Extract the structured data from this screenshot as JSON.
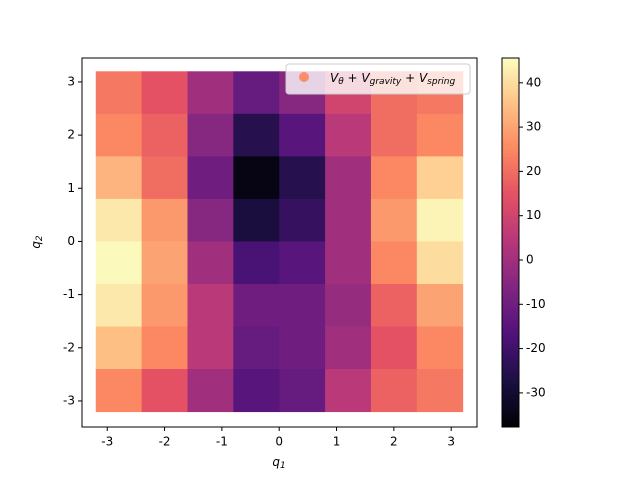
{
  "chart_data": {
    "type": "heatmap",
    "xlabel": [
      "q",
      "1"
    ],
    "ylabel": [
      "q",
      "2"
    ],
    "legend_label": [
      "V",
      "θ",
      " + V",
      "gravity",
      " + V",
      "spring"
    ],
    "legend_color": "#f98e6b",
    "x": [
      -2.8,
      -2.0,
      -1.2,
      -0.4,
      0.4,
      1.2,
      2.0,
      2.8
    ],
    "y": [
      2.8,
      2.0,
      1.2,
      0.4,
      -0.4,
      -1.2,
      -2.0,
      -2.8
    ],
    "cell": 0.8,
    "z": [
      [
        22,
        15,
        0,
        -12,
        -5,
        10,
        20,
        22
      ],
      [
        25,
        18,
        -5,
        -25,
        -15,
        5,
        20,
        25
      ],
      [
        33,
        20,
        -10,
        -35,
        -25,
        0,
        25,
        38
      ],
      [
        42,
        28,
        -5,
        -28,
        -22,
        0,
        28,
        44
      ],
      [
        45,
        30,
        0,
        -18,
        -15,
        0,
        25,
        40
      ],
      [
        42,
        28,
        5,
        -10,
        -10,
        -2,
        18,
        30
      ],
      [
        35,
        25,
        5,
        -12,
        -10,
        0,
        15,
        25
      ],
      [
        25,
        15,
        0,
        -15,
        -12,
        5,
        18,
        22
      ]
    ],
    "colormap": "magma",
    "xlim": [
      -3.44,
      3.45
    ],
    "ylim": [
      -3.49,
      3.45
    ],
    "xticks": [
      -3,
      -2,
      -1,
      0,
      1,
      2,
      3
    ],
    "yticks": [
      -3,
      -2,
      -1,
      0,
      1,
      2,
      3
    ],
    "zlim": [
      -37.7,
      45.6
    ],
    "zticks": [
      -30,
      -20,
      -10,
      0,
      10,
      20,
      30,
      40
    ],
    "legend_position": "upper right"
  }
}
